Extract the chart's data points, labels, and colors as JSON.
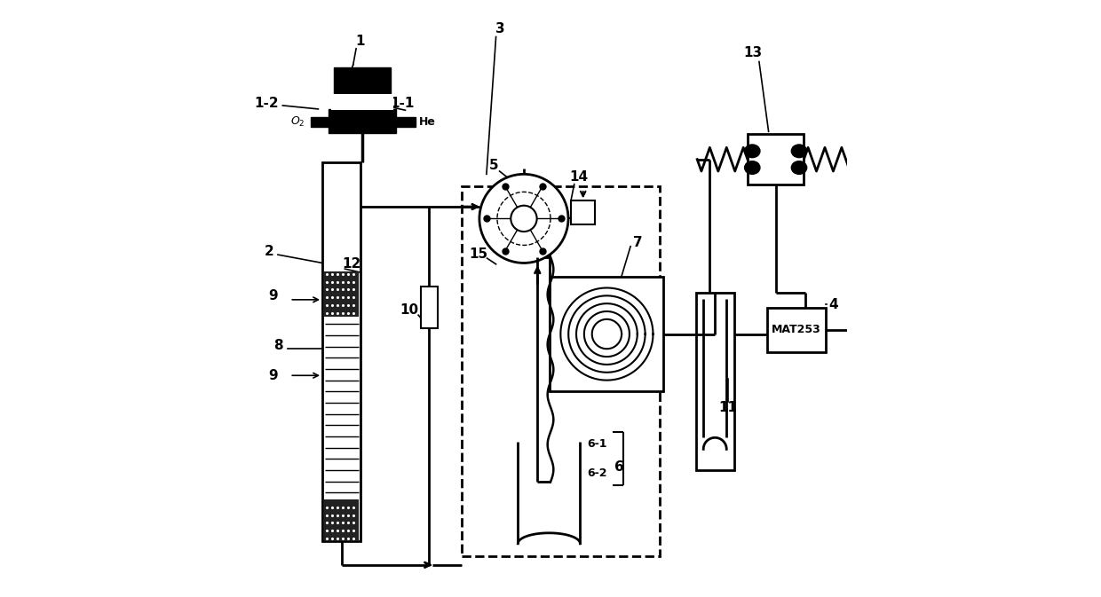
{
  "bg_color": "#ffffff",
  "line_color": "#000000",
  "figsize": [
    12.4,
    6.73
  ],
  "dpi": 100
}
